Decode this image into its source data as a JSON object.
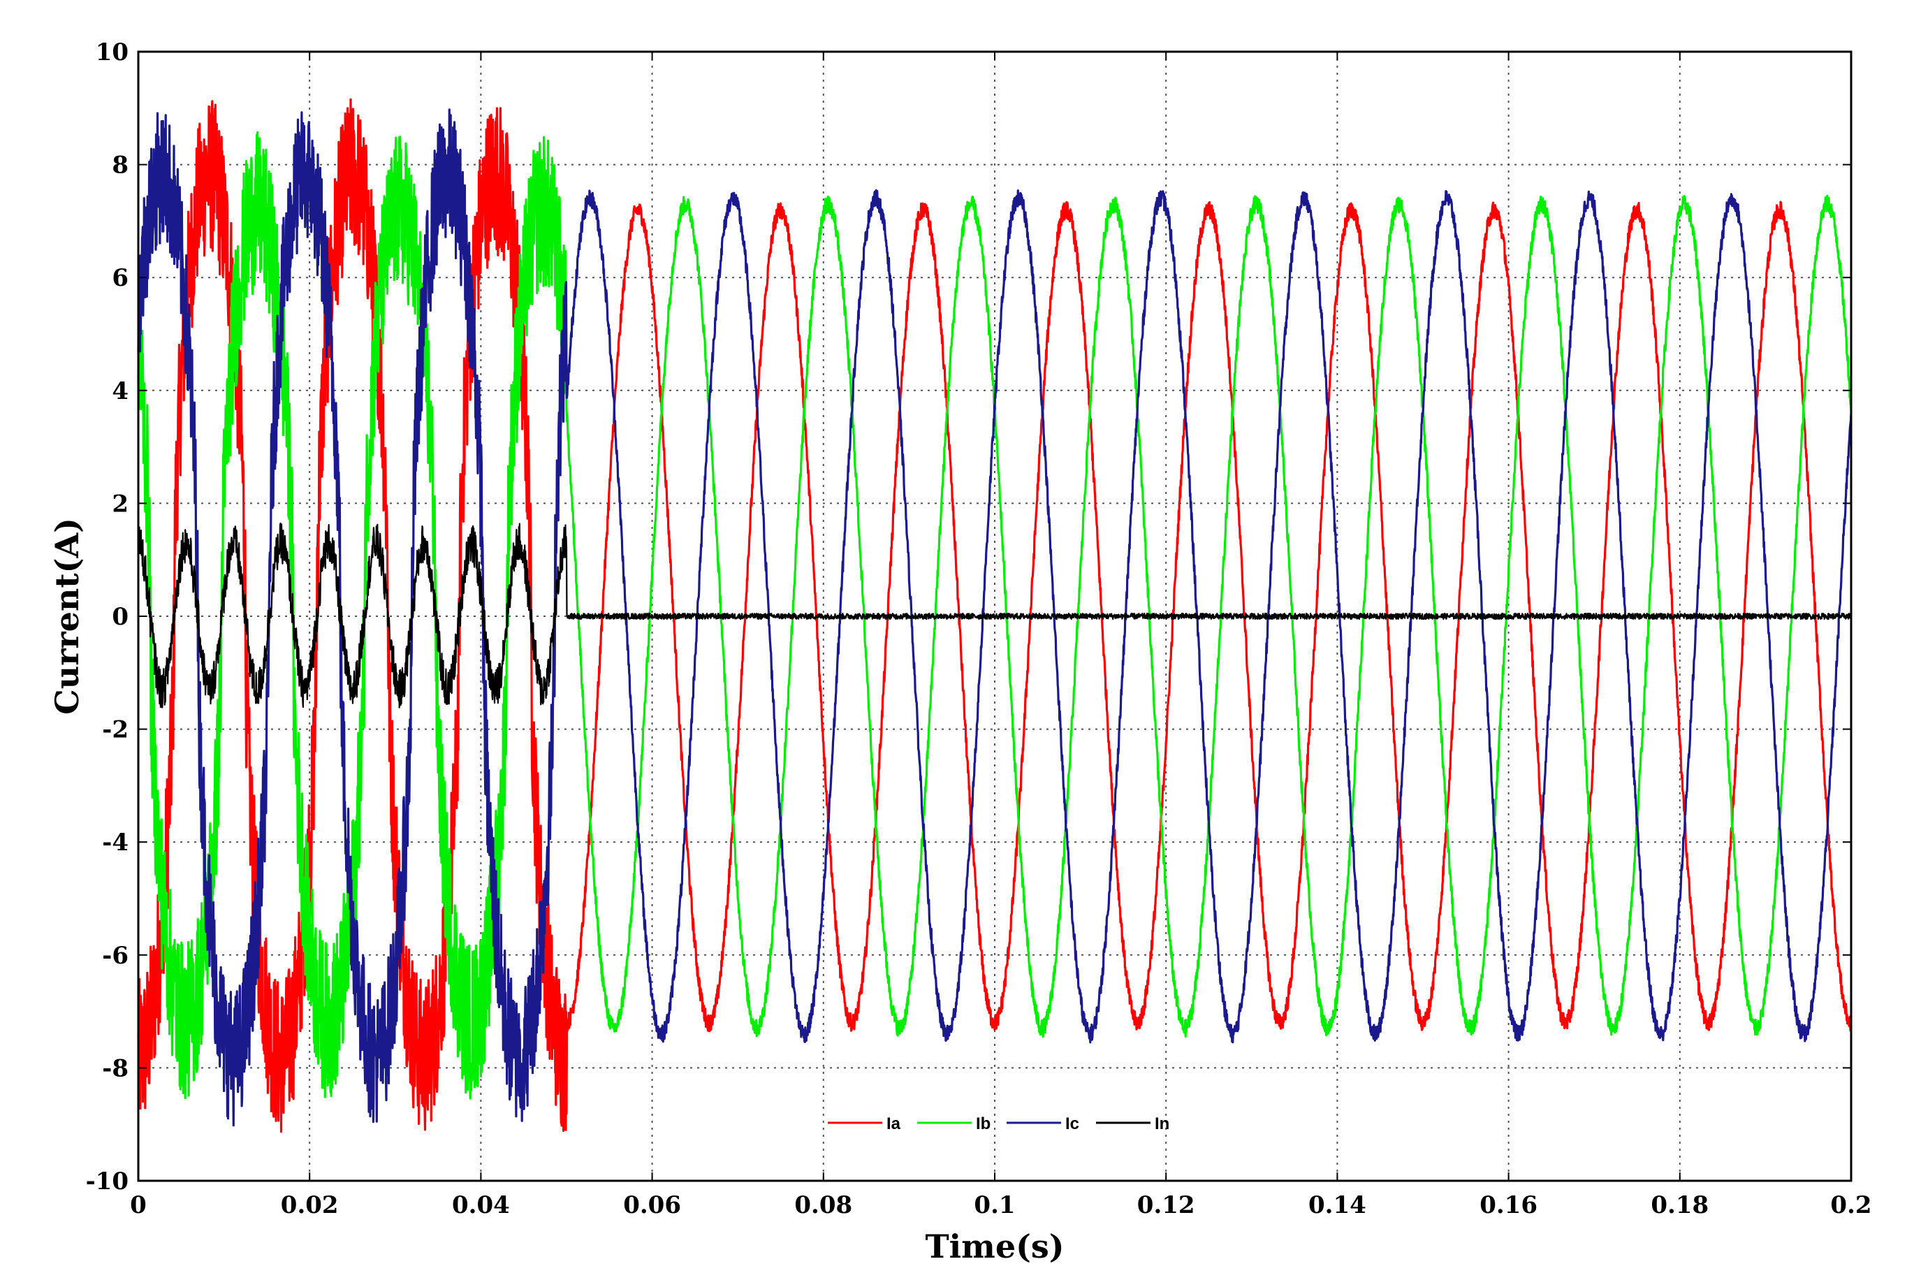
{
  "chart_data": {
    "type": "line",
    "title": "",
    "xlabel": "Time(s)",
    "ylabel": "Current(A)",
    "xlim": [
      0,
      0.2
    ],
    "ylim": [
      -10,
      10
    ],
    "grid": true,
    "legend_placement": "bottom-center",
    "x_ticks": [
      "0",
      "0.02",
      "0.04",
      "0.06",
      "0.08",
      "0.1",
      "0.12",
      "0.14",
      "0.16",
      "0.18",
      "0.2"
    ],
    "y_ticks": [
      "10",
      "8",
      "6",
      "4",
      "2",
      "0",
      "-2",
      "-4",
      "-6",
      "-8",
      "-10"
    ],
    "frequency_hz": 60,
    "compensation_start_s": 0.05,
    "series": [
      {
        "name": "Ia",
        "color": "#ff0000",
        "phase_deg": -90,
        "before_compensation": {
          "peak_A": 8.5,
          "noise_A": 1.4
        },
        "after_compensation": {
          "peak_A": 7.2,
          "noise_A": 0.15
        }
      },
      {
        "name": "Ib",
        "color": "#00ee00",
        "phase_deg": 150,
        "before_compensation": {
          "peak_A": 7.8,
          "noise_A": 1.4
        },
        "after_compensation": {
          "peak_A": 7.3,
          "noise_A": 0.15
        }
      },
      {
        "name": "Ic",
        "color": "#1a1a8c",
        "phase_deg": 30,
        "before_compensation": {
          "peak_A": 8.5,
          "noise_A": 1.2
        },
        "after_compensation": {
          "peak_A": 7.4,
          "noise_A": 0.15
        }
      },
      {
        "name": "In",
        "color": "#000000",
        "before_compensation": {
          "peak_A": 1.3,
          "noise_A": 0.35
        },
        "after_compensation": {
          "peak_A": 0.0,
          "noise_A": 0.05
        }
      }
    ]
  }
}
